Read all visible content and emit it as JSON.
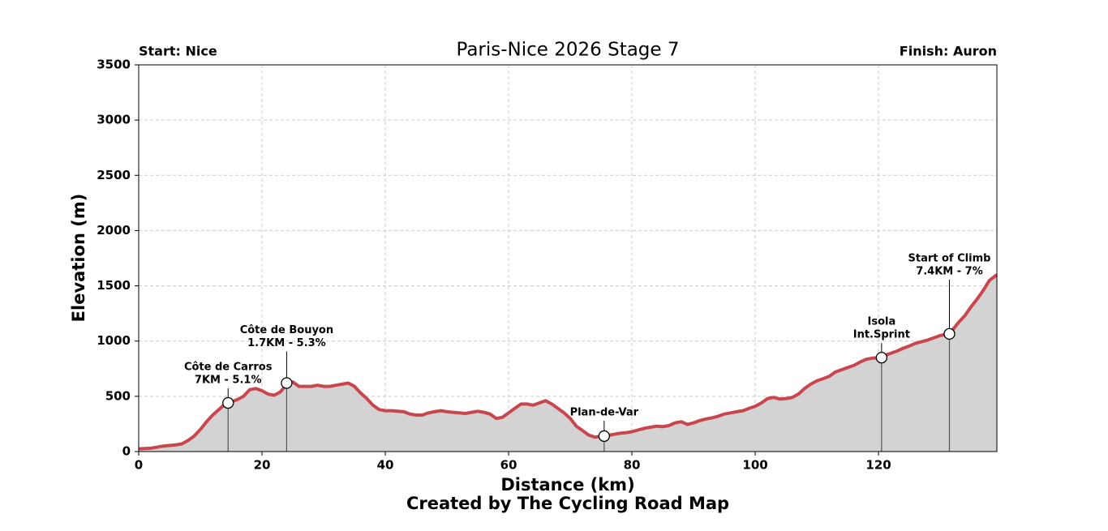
{
  "chart_data": {
    "type": "area-line",
    "title": "Paris-Nice 2026 Stage 7",
    "start_label": "Start: Nice",
    "finish_label": "Finish: Auron",
    "xlabel": "Distance (km)",
    "ylabel": "Elevation (m)",
    "footer": "Created by The Cycling Road Map",
    "line_color": "#c8474e",
    "fill_color": "#d3d3d3",
    "grid": true,
    "xlim": [
      0,
      139.2
    ],
    "ylim": [
      0,
      3500
    ],
    "xticks": [
      0,
      20,
      40,
      60,
      80,
      100,
      120
    ],
    "yticks": [
      0,
      500,
      1000,
      1500,
      2000,
      2500,
      3000,
      3500
    ],
    "x": [
      0,
      2,
      4,
      6,
      7,
      8,
      9,
      10,
      11,
      12,
      13,
      14,
      15,
      16,
      17,
      18,
      19,
      20,
      21,
      22,
      23,
      24,
      25,
      26,
      27,
      28,
      29,
      30,
      31,
      32,
      33,
      34,
      35,
      36,
      37,
      38,
      39,
      40,
      41,
      42,
      43,
      44,
      45,
      46,
      47,
      48,
      49,
      50,
      51,
      52,
      53,
      54,
      55,
      56,
      57,
      58,
      59,
      60,
      61,
      62,
      63,
      64,
      65,
      66,
      67,
      68,
      69,
      70,
      71,
      72,
      73,
      74,
      75,
      76,
      77,
      78,
      79,
      80,
      81,
      82,
      83,
      84,
      85,
      86,
      87,
      88,
      89,
      90,
      91,
      92,
      93,
      94,
      95,
      96,
      97,
      98,
      99,
      100,
      101,
      102,
      103,
      104,
      105,
      106,
      107,
      108,
      109,
      110,
      111,
      112,
      113,
      114,
      115,
      116,
      117,
      118,
      119,
      120,
      121,
      122,
      123,
      124,
      125,
      126,
      127,
      128,
      129,
      130,
      131,
      132,
      133,
      134,
      135,
      136,
      137,
      138,
      139.2
    ],
    "values": [
      25,
      30,
      50,
      60,
      70,
      100,
      140,
      200,
      270,
      330,
      380,
      430,
      450,
      470,
      500,
      560,
      570,
      550,
      520,
      510,
      540,
      610,
      630,
      590,
      590,
      590,
      600,
      590,
      590,
      600,
      610,
      620,
      590,
      530,
      480,
      420,
      380,
      370,
      370,
      365,
      360,
      340,
      330,
      330,
      350,
      360,
      370,
      360,
      355,
      350,
      345,
      355,
      365,
      355,
      340,
      300,
      310,
      350,
      390,
      430,
      430,
      420,
      440,
      460,
      430,
      390,
      350,
      300,
      230,
      190,
      150,
      130,
      140,
      145,
      155,
      165,
      170,
      180,
      195,
      210,
      220,
      230,
      225,
      235,
      260,
      270,
      245,
      260,
      280,
      295,
      305,
      320,
      340,
      350,
      360,
      370,
      390,
      410,
      440,
      480,
      490,
      475,
      480,
      490,
      520,
      570,
      610,
      640,
      660,
      680,
      720,
      740,
      760,
      780,
      810,
      835,
      845,
      850,
      870,
      890,
      910,
      935,
      955,
      980,
      995,
      1010,
      1030,
      1050,
      1060,
      1100,
      1170,
      1230,
      1310,
      1380,
      1460,
      1550,
      1600
    ],
    "annotations": [
      {
        "label": [
          "Côte de Carros",
          "7KM - 5.1%"
        ],
        "x": 14.5,
        "y": 440
      },
      {
        "label": [
          "Côte de Bouyon",
          "1.7KM - 5.3%"
        ],
        "x": 24,
        "y": 620
      },
      {
        "label": [
          "Plan-de-Var"
        ],
        "x": 75.5,
        "y": 140
      },
      {
        "label": [
          "Isola",
          "Int.Sprint"
        ],
        "x": 120.5,
        "y": 850
      },
      {
        "label": [
          "Start of Climb",
          "7.4KM - 7%"
        ],
        "x": 131.5,
        "y": 1065
      }
    ]
  }
}
